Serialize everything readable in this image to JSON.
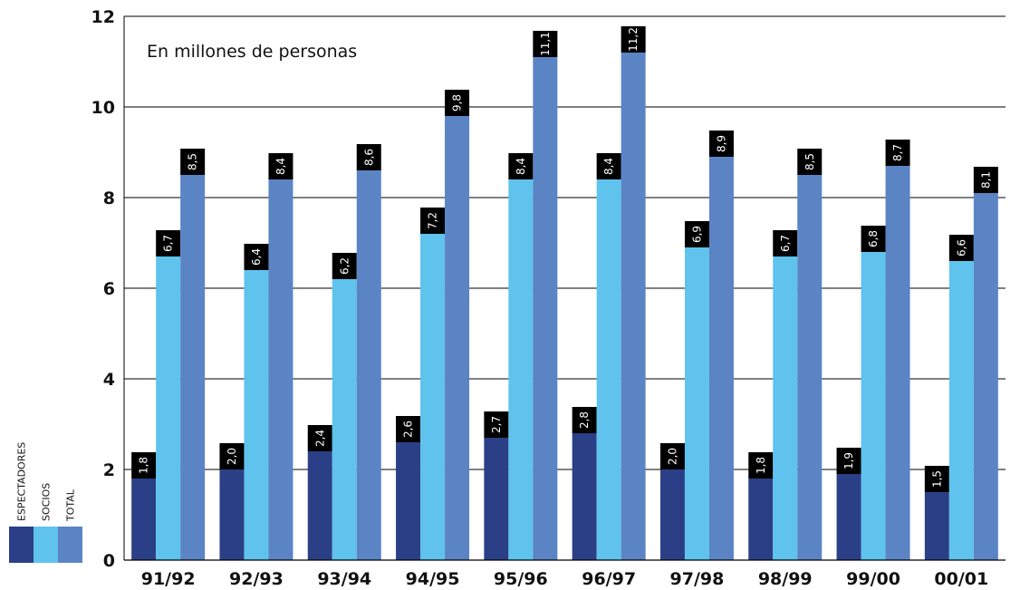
{
  "chart_data": {
    "type": "bar",
    "annotation": "En millones de personas",
    "categories": [
      "91/92",
      "92/93",
      "93/94",
      "94/95",
      "95/96",
      "96/97",
      "97/98",
      "98/99",
      "99/00",
      "00/01"
    ],
    "series": [
      {
        "name": "ESPECTADORES",
        "color": "#2b3f86",
        "values": [
          1.8,
          2.0,
          2.4,
          2.6,
          2.7,
          2.8,
          2.0,
          1.8,
          1.9,
          1.5
        ],
        "labels": [
          "1,8",
          "2,0",
          "2,4",
          "2,6",
          "2,7",
          "2,8",
          "2,0",
          "1,8",
          "1,9",
          "1,5"
        ]
      },
      {
        "name": "SOCIOS",
        "color": "#5fc3ee",
        "values": [
          6.7,
          6.4,
          6.2,
          7.2,
          8.4,
          8.4,
          6.9,
          6.7,
          6.8,
          6.6
        ],
        "labels": [
          "6,7",
          "6,4",
          "6,2",
          "7,2",
          "8,4",
          "8,4",
          "6,9",
          "6,7",
          "6,8",
          "6,6"
        ]
      },
      {
        "name": "TOTAL",
        "color": "#5b84c4",
        "values": [
          8.5,
          8.4,
          8.6,
          9.8,
          11.1,
          11.2,
          8.9,
          8.5,
          8.7,
          8.1
        ],
        "labels": [
          "8,5",
          "8,4",
          "8,6",
          "9,8",
          "11,1",
          "11,2",
          "8,9",
          "8,5",
          "8,7",
          "8,1"
        ]
      }
    ],
    "ylim": [
      0,
      12
    ],
    "yticks": [
      0,
      2,
      4,
      6,
      8,
      10,
      12
    ],
    "grid": true,
    "legend_position": "bottom-left"
  }
}
